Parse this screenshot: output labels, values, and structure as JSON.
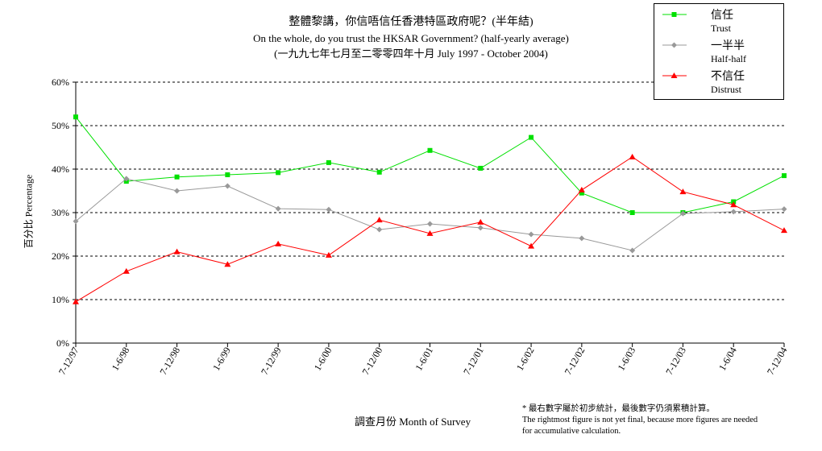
{
  "title": {
    "line1": "整體黎講，你信唔信任香港特區政府呢？(半年結)",
    "line2": "On the whole, do you trust the HKSAR Government? (half-yearly average)",
    "line3": "(一九九七年七月至二零零四年十月 July 1997 - October 2004)"
  },
  "legend": {
    "items": [
      {
        "zh": "信任",
        "en": "Trust",
        "color": "#00e000",
        "marker": "square"
      },
      {
        "zh": "一半半",
        "en": "Half-half",
        "color": "#999999",
        "marker": "diamond"
      },
      {
        "zh": "不信任",
        "en": "Distrust",
        "color": "#ff0000",
        "marker": "triangle"
      }
    ]
  },
  "ylabel": "百分比 Percentage",
  "xlabel": "調查月份 Month of Survey",
  "footnote": {
    "line1": "* 最右數字屬於初步統計，最後數字仍須累積計算。",
    "line2": "The rightmost figure is not yet final, because more figures are needed",
    "line3": "for accumulative calculation."
  },
  "chart_data": {
    "type": "line",
    "categories": [
      "7-12/97",
      "1-6/98",
      "7-12/98",
      "1-6/99",
      "7-12/99",
      "1-6/00",
      "7-12/00",
      "1-6/01",
      "7-12/01",
      "1-6/02",
      "7-12/02",
      "1-6/03",
      "7-12/03",
      "1-6/04",
      "7-12/04"
    ],
    "y_tick_labels": [
      "0%",
      "10%",
      "20%",
      "30%",
      "40%",
      "50%",
      "60%"
    ],
    "ylim": [
      0,
      60
    ],
    "grid": true,
    "legend_position": "top-right",
    "series": [
      {
        "name": "Trust",
        "color": "#00e000",
        "marker": "square",
        "values": [
          52,
          37.2,
          38.2,
          38.7,
          39.2,
          41.5,
          39.3,
          44.3,
          40.2,
          47.3,
          34.5,
          30,
          30,
          32.5,
          38.5
        ]
      },
      {
        "name": "Half-half",
        "color": "#999999",
        "marker": "diamond",
        "values": [
          28,
          37.8,
          35,
          36.1,
          30.9,
          30.7,
          26.1,
          27.4,
          26.5,
          25,
          24.1,
          21.3,
          29.8,
          30.2,
          30.8
        ]
      },
      {
        "name": "Distrust",
        "color": "#ff0000",
        "marker": "triangle",
        "values": [
          9.5,
          16.5,
          21,
          18.1,
          22.8,
          20.2,
          28.3,
          25.2,
          27.8,
          22.3,
          35.2,
          42.8,
          34.8,
          31.8,
          25.9
        ]
      }
    ]
  }
}
